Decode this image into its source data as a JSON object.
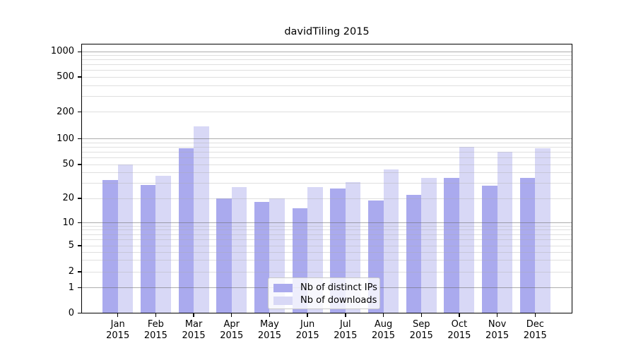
{
  "title": "davidTiling 2015",
  "colors": {
    "background": "#ffffff",
    "ips_bar": "#aaaaee",
    "downloads_bar": "#d8d8f6",
    "major_grid": "rgba(105,105,105,0.55)",
    "minor_grid": "rgba(170,170,170,0.38)",
    "axis": "#000000",
    "legend_border": "#c9c9c9"
  },
  "legend": {
    "items": [
      {
        "label": "Nb of distinct IPs",
        "swatch": "#aaaaee"
      },
      {
        "label": "Nb of downloads",
        "swatch": "#d8d8f6"
      }
    ]
  },
  "chart_data": {
    "type": "bar",
    "title": "davidTiling 2015",
    "categories": [
      "Jan 2015",
      "Feb 2015",
      "Mar 2015",
      "Apr 2015",
      "May 2015",
      "Jun 2015",
      "Jul 2015",
      "Aug 2015",
      "Sep 2015",
      "Oct 2015",
      "Nov 2015",
      "Dec 2015"
    ],
    "x_months": [
      "Jan",
      "Feb",
      "Mar",
      "Apr",
      "May",
      "Jun",
      "Jul",
      "Aug",
      "Sep",
      "Oct",
      "Nov",
      "Dec"
    ],
    "year": "2015",
    "series": [
      {
        "name": "Nb of distinct IPs",
        "color": "#aaaaee",
        "values": [
          33,
          29,
          78,
          20,
          18,
          15,
          26,
          19,
          22,
          35,
          28,
          35
        ]
      },
      {
        "name": "Nb of downloads",
        "color": "#d8d8f6",
        "values": [
          50,
          37,
          138,
          27,
          20,
          27,
          31,
          44,
          35,
          80,
          70,
          78
        ]
      }
    ],
    "y_axis": {
      "scale": "symlog",
      "ticks": [
        0,
        1,
        2,
        5,
        10,
        20,
        50,
        100,
        200,
        500,
        1000
      ],
      "major_gridlines": [
        1,
        10,
        100,
        1000
      ],
      "ylim": [
        0,
        1230
      ]
    },
    "grid": true,
    "legend_position": "lower center"
  }
}
